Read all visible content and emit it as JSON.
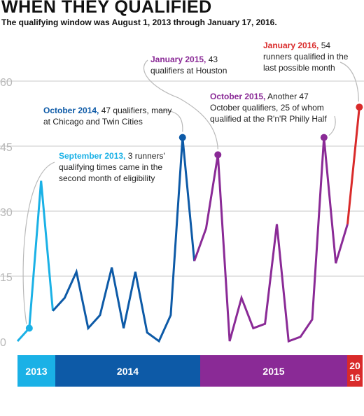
{
  "title": "WHEN THEY QUALIFIED",
  "subtitle": "The qualifying window was August 1, 2013 through January 17, 2016.",
  "chart_data": {
    "type": "line",
    "title": "WHEN THEY QUALIFIED",
    "xlabel": "",
    "ylabel": "",
    "ylim": [
      0,
      60
    ],
    "yticks": [
      0,
      15,
      30,
      45,
      60
    ],
    "grid": true,
    "x": [
      "2013-08",
      "2013-09",
      "2013-10",
      "2013-11",
      "2013-12",
      "2014-01",
      "2014-02",
      "2014-03",
      "2014-04",
      "2014-05",
      "2014-06",
      "2014-07",
      "2014-08",
      "2014-09",
      "2014-10",
      "2014-11",
      "2014-12",
      "2015-01",
      "2015-02",
      "2015-03",
      "2015-04",
      "2015-05",
      "2015-06",
      "2015-07",
      "2015-08",
      "2015-09",
      "2015-10",
      "2015-11",
      "2015-12",
      "2016-01"
    ],
    "series": [
      {
        "year": "2013",
        "color": "#1ab1e6",
        "x": [
          "2013-08",
          "2013-09",
          "2013-10",
          "2013-11"
        ],
        "values": [
          0,
          3,
          37,
          7
        ]
      },
      {
        "year": "2014",
        "color": "#0d5aa7",
        "x": [
          "2013-11",
          "2013-12",
          "2014-01",
          "2014-02",
          "2014-03",
          "2014-04",
          "2014-05",
          "2014-06",
          "2014-07",
          "2014-08",
          "2014-09",
          "2014-10",
          "2014-11"
        ],
        "values": [
          7,
          10,
          16,
          3,
          6,
          17,
          3,
          16,
          2,
          0,
          6,
          47,
          18.5
        ]
      },
      {
        "year": "2015",
        "color": "#8a2a96",
        "x": [
          "2014-11",
          "2014-12",
          "2015-01",
          "2015-02",
          "2015-03",
          "2015-04",
          "2015-05",
          "2015-06",
          "2015-07",
          "2015-08",
          "2015-09",
          "2015-10",
          "2015-11",
          "2015-12"
        ],
        "values": [
          18.5,
          26,
          43,
          0,
          10,
          3,
          4,
          27,
          0,
          1,
          5,
          47,
          18,
          27
        ]
      },
      {
        "year": "2016",
        "color": "#d92a2a",
        "x": [
          "2015-12",
          "2016-01"
        ],
        "values": [
          27,
          54
        ]
      }
    ],
    "highlights": [
      {
        "x": "2013-09",
        "value": 3,
        "color": "#1ab1e6"
      },
      {
        "x": "2014-10",
        "value": 47,
        "color": "#0d5aa7"
      },
      {
        "x": "2015-01",
        "value": 43,
        "color": "#8a2a96"
      },
      {
        "x": "2015-10",
        "value": 47,
        "color": "#8a2a96"
      },
      {
        "x": "2016-01",
        "value": 54,
        "color": "#d92a2a"
      }
    ],
    "year_bands": [
      {
        "label": "2013",
        "color": "#1ab1e6"
      },
      {
        "label": "2014",
        "color": "#0d5aa7"
      },
      {
        "label": "2015",
        "color": "#8a2a96"
      },
      {
        "label": "2016",
        "label_top": "20",
        "label_bottom": "16",
        "color": "#d92a2a"
      }
    ]
  },
  "annotations": {
    "sep2013": {
      "lead": "September 2013,",
      "text": "3 runners' qualifying times came in the second month of eligibility",
      "color": "#1ab1e6"
    },
    "oct2014": {
      "lead": "October 2014,",
      "text": "47 qualifiers, many at Chicago and Twin Cities",
      "color": "#0d5aa7"
    },
    "jan2015": {
      "lead": "January 2015,",
      "text": "43 qualifiers at Houston",
      "color": "#8a2a96"
    },
    "oct2015": {
      "lead": "October 2015,",
      "text": "Another 47 October qualifiers, 25 of whom qualified at the R'n'R Philly Half",
      "color": "#8a2a96"
    },
    "jan2016": {
      "lead": "January 2016,",
      "text": "54 runners qualified in the last possible month",
      "color": "#d92a2a"
    }
  }
}
